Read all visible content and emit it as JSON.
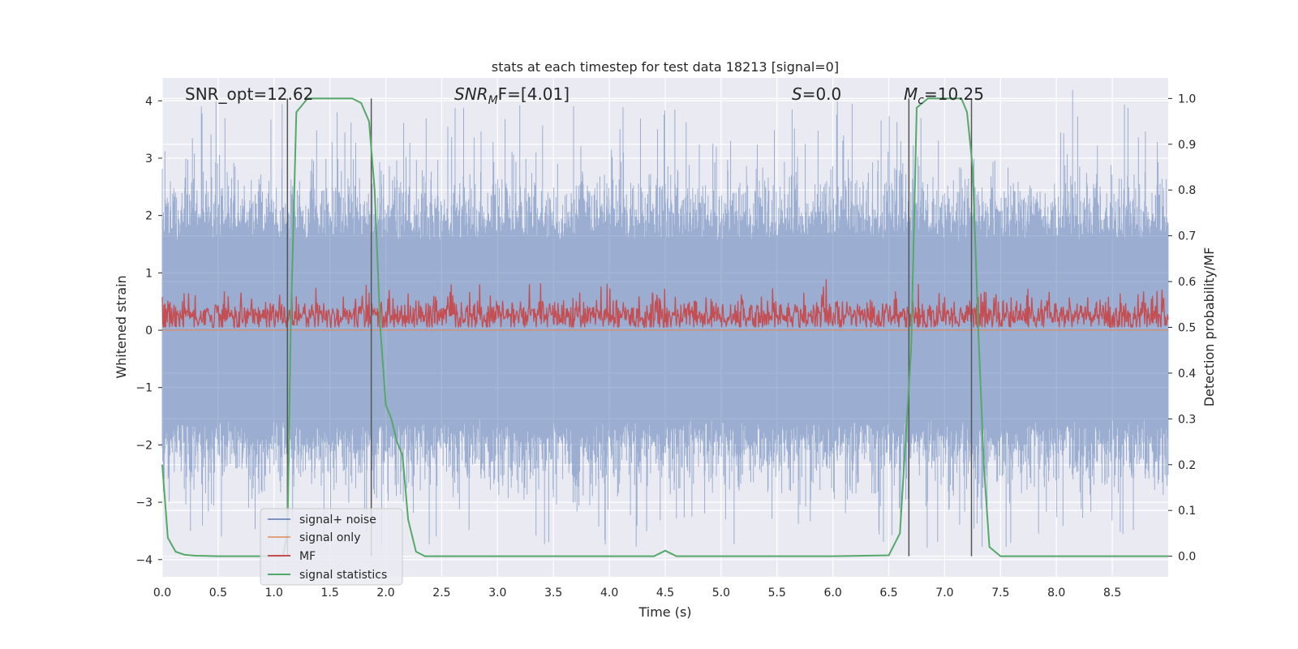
{
  "chart_data": {
    "type": "line",
    "title": "stats at each timestep for test data 18213 [signal=0]",
    "xlabel": "Time (s)",
    "ylabel": "Whitened strain",
    "y2label": "Detection probability/MF",
    "xlim": [
      0.0,
      9.0
    ],
    "ylim": [
      -4.3,
      4.4
    ],
    "y2lim": [
      -0.045,
      1.045
    ],
    "xticks": [
      "0.0",
      "0.5",
      "1.0",
      "1.5",
      "2.0",
      "2.5",
      "3.0",
      "3.5",
      "4.0",
      "4.5",
      "5.0",
      "5.5",
      "6.0",
      "6.5",
      "7.0",
      "7.5",
      "8.0",
      "8.5"
    ],
    "xtick_values": [
      0.0,
      0.5,
      1.0,
      1.5,
      2.0,
      2.5,
      3.0,
      3.5,
      4.0,
      4.5,
      5.0,
      5.5,
      6.0,
      6.5,
      7.0,
      7.5,
      8.0,
      8.5
    ],
    "yticks": [
      "4",
      "3",
      "2",
      "1",
      "0",
      "−1",
      "−2",
      "−3",
      "−4"
    ],
    "ytick_values": [
      4,
      3,
      2,
      1,
      0,
      -1,
      -2,
      -3,
      -4
    ],
    "y2ticks": [
      "1.0",
      "0.9",
      "0.8",
      "0.7",
      "0.6",
      "0.5",
      "0.4",
      "0.3",
      "0.2",
      "0.1",
      "0.0"
    ],
    "y2tick_values": [
      1.0,
      0.9,
      0.8,
      0.7,
      0.6,
      0.5,
      0.4,
      0.3,
      0.2,
      0.1,
      0.0
    ],
    "grid": true,
    "legend_position": "lower-left",
    "annotations": {
      "snr_opt": "SNR_opt=12.62",
      "snr_mf_main": "SNR",
      "snr_mf_sub": "M",
      "snr_mf_rest": "F=[4.01]",
      "s_main": "S",
      "s_rest": "=0.0",
      "mc_main": "M",
      "mc_sub": "c",
      "mc_rest": "=10.25"
    },
    "vertical_lines_x": [
      1.12,
      1.87,
      6.68,
      7.24
    ],
    "series": [
      {
        "name": "signal+ noise",
        "color": "#4c72b0",
        "axis": "left",
        "style": "dense noise, envelope approx ±2.5, peaks to 4 / -3.9",
        "approx_amplitude": 2.5
      },
      {
        "name": "signal only",
        "color": "#dd8452",
        "axis": "left",
        "values_note": "flat at 0 (signal=0)"
      },
      {
        "name": "MF",
        "color": "#c44e52",
        "axis": "right",
        "approx_range": [
          0.5,
          0.6
        ]
      },
      {
        "name": "signal statistics",
        "color": "#55a868",
        "axis": "right",
        "x": [
          0.0,
          0.05,
          0.12,
          0.2,
          0.3,
          0.5,
          0.8,
          1.0,
          1.08,
          1.12,
          1.15,
          1.2,
          1.3,
          1.4,
          1.6,
          1.7,
          1.78,
          1.85,
          1.9,
          1.95,
          2.0,
          2.05,
          2.1,
          2.15,
          2.2,
          2.27,
          2.35,
          2.5,
          3.0,
          3.5,
          4.0,
          4.4,
          4.5,
          4.6,
          4.8,
          5.0,
          6.0,
          6.5,
          6.6,
          6.7,
          6.75,
          6.85,
          7.0,
          7.15,
          7.2,
          7.25,
          7.3,
          7.35,
          7.4,
          7.5,
          8.0,
          8.5,
          9.0
        ],
        "values": [
          0.2,
          0.04,
          0.01,
          0.003,
          0.001,
          0.0,
          0.0,
          0.0,
          0.0,
          0.05,
          0.5,
          0.97,
          1.0,
          1.0,
          1.0,
          1.0,
          0.99,
          0.95,
          0.8,
          0.5,
          0.33,
          0.3,
          0.25,
          0.22,
          0.08,
          0.01,
          0.0,
          0.0,
          0.0,
          0.0,
          0.0,
          0.0,
          0.012,
          0.0,
          0.0,
          0.0,
          0.0,
          0.002,
          0.05,
          0.45,
          0.98,
          1.0,
          1.0,
          1.0,
          0.97,
          0.85,
          0.5,
          0.2,
          0.02,
          0.0,
          0.0,
          0.0,
          0.0
        ]
      }
    ]
  }
}
